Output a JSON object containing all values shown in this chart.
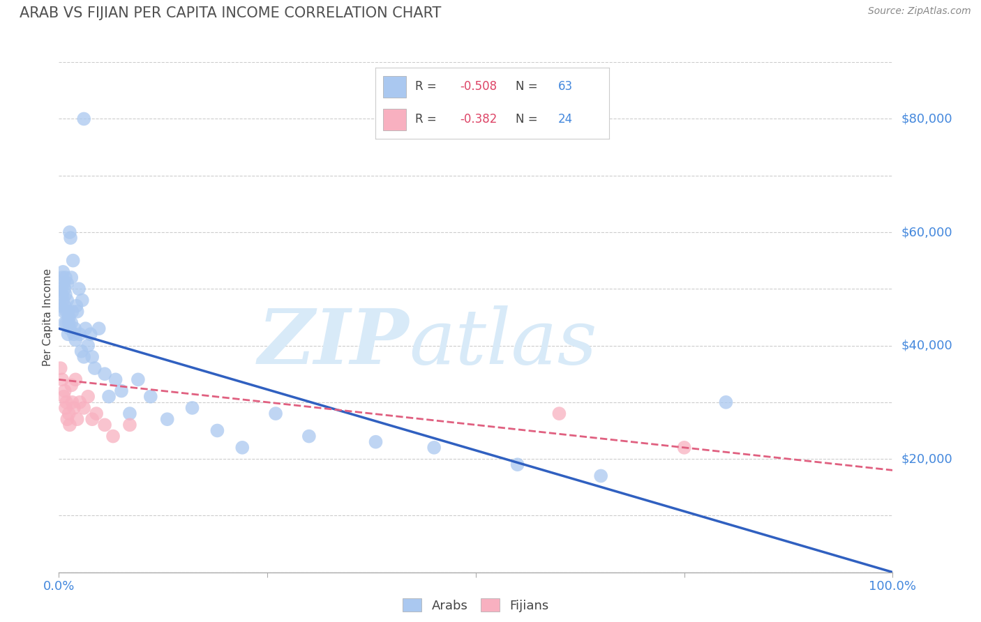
{
  "title": "ARAB VS FIJIAN PER CAPITA INCOME CORRELATION CHART",
  "source": "Source: ZipAtlas.com",
  "ylabel": "Per Capita Income",
  "xlim": [
    0,
    1.0
  ],
  "ylim": [
    0,
    90000
  ],
  "ytick_values": [
    20000,
    40000,
    60000,
    80000
  ],
  "ytick_labels": [
    "$20,000",
    "$40,000",
    "$60,000",
    "$80,000"
  ],
  "arab_R": -0.508,
  "arab_N": 63,
  "fijian_R": -0.382,
  "fijian_N": 24,
  "arab_color": "#aac8f0",
  "arab_line_color": "#3060c0",
  "fijian_color": "#f8b0c0",
  "fijian_line_color": "#e06080",
  "arab_scatter_x": [
    0.002,
    0.003,
    0.004,
    0.004,
    0.005,
    0.005,
    0.006,
    0.006,
    0.007,
    0.007,
    0.007,
    0.008,
    0.008,
    0.009,
    0.009,
    0.01,
    0.01,
    0.011,
    0.011,
    0.012,
    0.012,
    0.013,
    0.013,
    0.014,
    0.015,
    0.015,
    0.016,
    0.017,
    0.018,
    0.019,
    0.02,
    0.021,
    0.022,
    0.024,
    0.025,
    0.027,
    0.028,
    0.03,
    0.032,
    0.035,
    0.038,
    0.04,
    0.043,
    0.048,
    0.055,
    0.06,
    0.068,
    0.075,
    0.085,
    0.095,
    0.11,
    0.13,
    0.16,
    0.19,
    0.22,
    0.26,
    0.3,
    0.38,
    0.45,
    0.55,
    0.65,
    0.8,
    0.03
  ],
  "arab_scatter_y": [
    47000,
    50000,
    49000,
    52000,
    48000,
    53000,
    46000,
    51000,
    47000,
    50000,
    44000,
    49000,
    52000,
    46000,
    44000,
    48000,
    51000,
    42000,
    46000,
    44000,
    45000,
    43000,
    60000,
    59000,
    52000,
    44000,
    46000,
    55000,
    42000,
    43000,
    41000,
    47000,
    46000,
    50000,
    42000,
    39000,
    48000,
    38000,
    43000,
    40000,
    42000,
    38000,
    36000,
    43000,
    35000,
    31000,
    34000,
    32000,
    28000,
    34000,
    31000,
    27000,
    29000,
    25000,
    22000,
    28000,
    24000,
    23000,
    22000,
    19000,
    17000,
    30000,
    80000
  ],
  "fijian_scatter_x": [
    0.002,
    0.004,
    0.006,
    0.007,
    0.008,
    0.009,
    0.01,
    0.012,
    0.013,
    0.015,
    0.016,
    0.018,
    0.02,
    0.022,
    0.025,
    0.03,
    0.035,
    0.04,
    0.045,
    0.055,
    0.065,
    0.085,
    0.6,
    0.75
  ],
  "fijian_scatter_y": [
    36000,
    34000,
    31000,
    32000,
    29000,
    30000,
    27000,
    28000,
    26000,
    33000,
    30000,
    29000,
    34000,
    27000,
    30000,
    29000,
    31000,
    27000,
    28000,
    26000,
    24000,
    26000,
    28000,
    22000
  ],
  "arab_line_x0": 0.0,
  "arab_line_y0": 43000,
  "arab_line_x1": 1.0,
  "arab_line_y1": 0,
  "fijian_line_x0": 0.0,
  "fijian_line_y0": 34000,
  "fijian_line_x1": 1.0,
  "fijian_line_y1": 18000,
  "watermark_zip": "ZIP",
  "watermark_atlas": "atlas",
  "background_color": "#ffffff",
  "grid_color": "#cccccc",
  "title_color": "#505050",
  "axis_label_color": "#4488dd",
  "text_color": "#444444",
  "legend_R_color": "#dd4466",
  "legend_N_color": "#4488dd",
  "legend_box_color": "#dddddd"
}
